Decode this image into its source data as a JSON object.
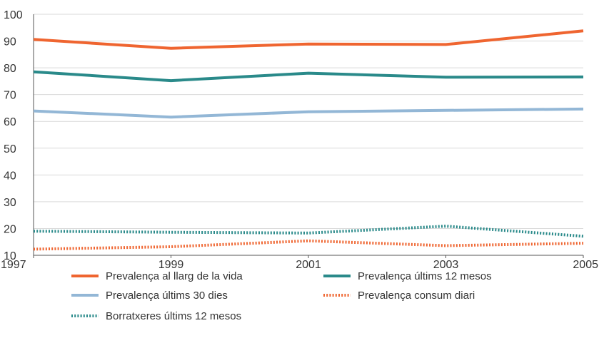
{
  "chart_data": {
    "type": "line",
    "x": [
      1997,
      1999,
      2001,
      2003,
      2005
    ],
    "xlim": [
      1997,
      2005
    ],
    "ylim": [
      10,
      100
    ],
    "yticks": [
      10,
      20,
      30,
      40,
      50,
      60,
      70,
      80,
      90,
      100
    ],
    "grid": "horizontal",
    "legend_position": "bottom",
    "series": [
      {
        "name": "Prevalença al llarg de la vida",
        "values": [
          90.6,
          87.3,
          88.9,
          88.7,
          93.8
        ],
        "color": "#ef6530",
        "style": "solid"
      },
      {
        "name": "Prevalença últims 12 mesos",
        "values": [
          78.5,
          75.2,
          78.0,
          76.5,
          76.6
        ],
        "color": "#2a8a8a",
        "style": "solid"
      },
      {
        "name": "Prevalença últims 30 dies",
        "values": [
          63.9,
          61.6,
          63.6,
          64.1,
          64.6
        ],
        "color": "#93b7d6",
        "style": "solid"
      },
      {
        "name": "Prevalença consum diari",
        "values": [
          12.3,
          13.2,
          15.4,
          13.6,
          14.5
        ],
        "color": "#ef6530",
        "style": "dotted"
      },
      {
        "name": "Borratxeres últims 12 mesos",
        "values": [
          19.0,
          18.6,
          18.3,
          20.9,
          17.1
        ],
        "color": "#2a8a8a",
        "style": "dotted"
      }
    ]
  },
  "legend": {
    "items": [
      {
        "label": "Prevalença al llarg de la vida",
        "color": "#ef6530",
        "style": "solid"
      },
      {
        "label": "Prevalença últims 12 mesos",
        "color": "#2a8a8a",
        "style": "solid"
      },
      {
        "label": "Prevalença últims 30 dies",
        "color": "#93b7d6",
        "style": "solid"
      },
      {
        "label": "Prevalença consum diari",
        "color": "#ef6530",
        "style": "dotted"
      },
      {
        "label": "Borratxeres últims 12 mesos",
        "color": "#2a8a8a",
        "style": "dotted"
      }
    ]
  }
}
